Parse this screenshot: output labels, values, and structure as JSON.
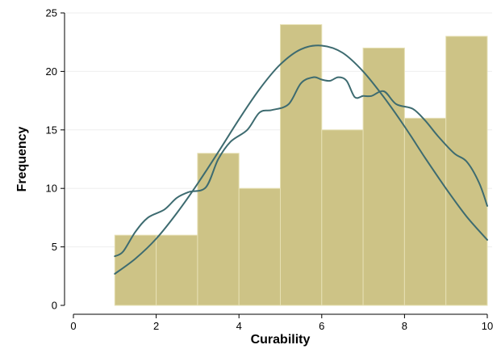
{
  "chart_data": {
    "type": "bar",
    "title": "",
    "xlabel": "Curability",
    "ylabel": "Frequency",
    "xlim": [
      0,
      10
    ],
    "ylim": [
      0,
      25
    ],
    "x_ticks": [
      0,
      2,
      4,
      6,
      8,
      10
    ],
    "y_ticks": [
      0,
      5,
      10,
      15,
      20,
      25
    ],
    "grid": true,
    "bins": [
      {
        "start": 1,
        "end": 2,
        "value": 6
      },
      {
        "start": 2,
        "end": 3,
        "value": 6
      },
      {
        "start": 3,
        "end": 4,
        "value": 13
      },
      {
        "start": 4,
        "end": 5,
        "value": 10
      },
      {
        "start": 5,
        "end": 6,
        "value": 24
      },
      {
        "start": 6,
        "end": 7,
        "value": 15
      },
      {
        "start": 7,
        "end": 8,
        "value": 22
      },
      {
        "start": 8,
        "end": 9,
        "value": 16
      },
      {
        "start": 9,
        "end": 10,
        "value": 23
      }
    ],
    "series": [
      {
        "kind": "normal",
        "x": [
          1,
          1.5,
          2,
          2.5,
          3,
          3.5,
          4,
          4.5,
          5,
          5.5,
          6,
          6.5,
          7,
          7.5,
          8,
          8.5,
          9,
          9.5,
          10
        ],
        "values": [
          2.7,
          4.0,
          5.7,
          7.9,
          10.4,
          13.1,
          15.9,
          18.5,
          20.6,
          21.9,
          22.2,
          21.6,
          20.0,
          17.8,
          15.3,
          12.6,
          10.0,
          7.6,
          5.6
        ]
      },
      {
        "kind": "kernel-density",
        "x": [
          1,
          1.2,
          1.5,
          1.8,
          2.2,
          2.5,
          2.8,
          3.2,
          3.5,
          3.8,
          4.2,
          4.5,
          4.8,
          5.2,
          5.5,
          5.8,
          6.0,
          6.2,
          6.4,
          6.6,
          6.8,
          7.0,
          7.2,
          7.5,
          7.8,
          8.2,
          8.5,
          8.8,
          9.2,
          9.5,
          9.8,
          10
        ],
        "values": [
          4.2,
          4.6,
          6.3,
          7.5,
          8.2,
          9.2,
          9.7,
          10.1,
          12.5,
          14.0,
          15.0,
          16.5,
          16.7,
          17.2,
          19.0,
          19.5,
          19.3,
          19.2,
          19.5,
          19.2,
          17.8,
          17.9,
          17.9,
          18.3,
          17.2,
          16.8,
          15.8,
          14.5,
          13.0,
          12.3,
          10.5,
          8.5
        ]
      }
    ],
    "colors": {
      "bar_fill": "#cdc386",
      "bar_edge": "#e6e0b4",
      "curve": "#3d6b70"
    }
  }
}
